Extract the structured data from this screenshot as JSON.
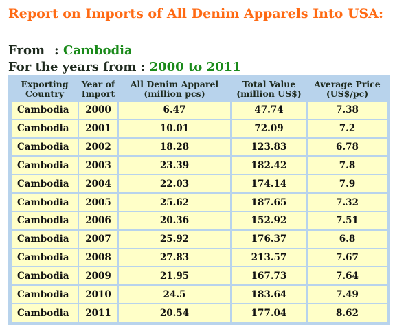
{
  "title": "Report on Imports of All Denim Apparels Into USA:",
  "from": {
    "label": "From",
    "separator": ":",
    "value": "Cambodia"
  },
  "years": {
    "label": "For the years from :",
    "value": "2000 to 2011"
  },
  "table": {
    "headers": [
      "Exporting Country",
      "Year of Import",
      "All Denim Apparel (million pcs)",
      "Total Value (million US$)",
      "Average Price (US$/pc)"
    ],
    "rows": [
      [
        "Cambodia",
        "2000",
        "6.47",
        "47.74",
        "7.38"
      ],
      [
        "Cambodia",
        "2001",
        "10.01",
        "72.09",
        "7.2"
      ],
      [
        "Cambodia",
        "2002",
        "18.28",
        "123.83",
        "6.78"
      ],
      [
        "Cambodia",
        "2003",
        "23.39",
        "182.42",
        "7.8"
      ],
      [
        "Cambodia",
        "2004",
        "22.03",
        "174.14",
        "7.9"
      ],
      [
        "Cambodia",
        "2005",
        "25.62",
        "187.65",
        "7.32"
      ],
      [
        "Cambodia",
        "2006",
        "20.36",
        "152.92",
        "7.51"
      ],
      [
        "Cambodia",
        "2007",
        "25.92",
        "176.37",
        "6.8"
      ],
      [
        "Cambodia",
        "2008",
        "27.83",
        "213.57",
        "7.67"
      ],
      [
        "Cambodia",
        "2009",
        "21.95",
        "167.73",
        "7.64"
      ],
      [
        "Cambodia",
        "2010",
        "24.5",
        "183.64",
        "7.49"
      ],
      [
        "Cambodia",
        "2011",
        "20.54",
        "177.04",
        "8.62"
      ]
    ]
  },
  "colors": {
    "title": "#ff6a13",
    "highlight_value": "#1a8a1a",
    "header_bg": "#b8d3ec",
    "cell_bg": "#ffffc8"
  }
}
